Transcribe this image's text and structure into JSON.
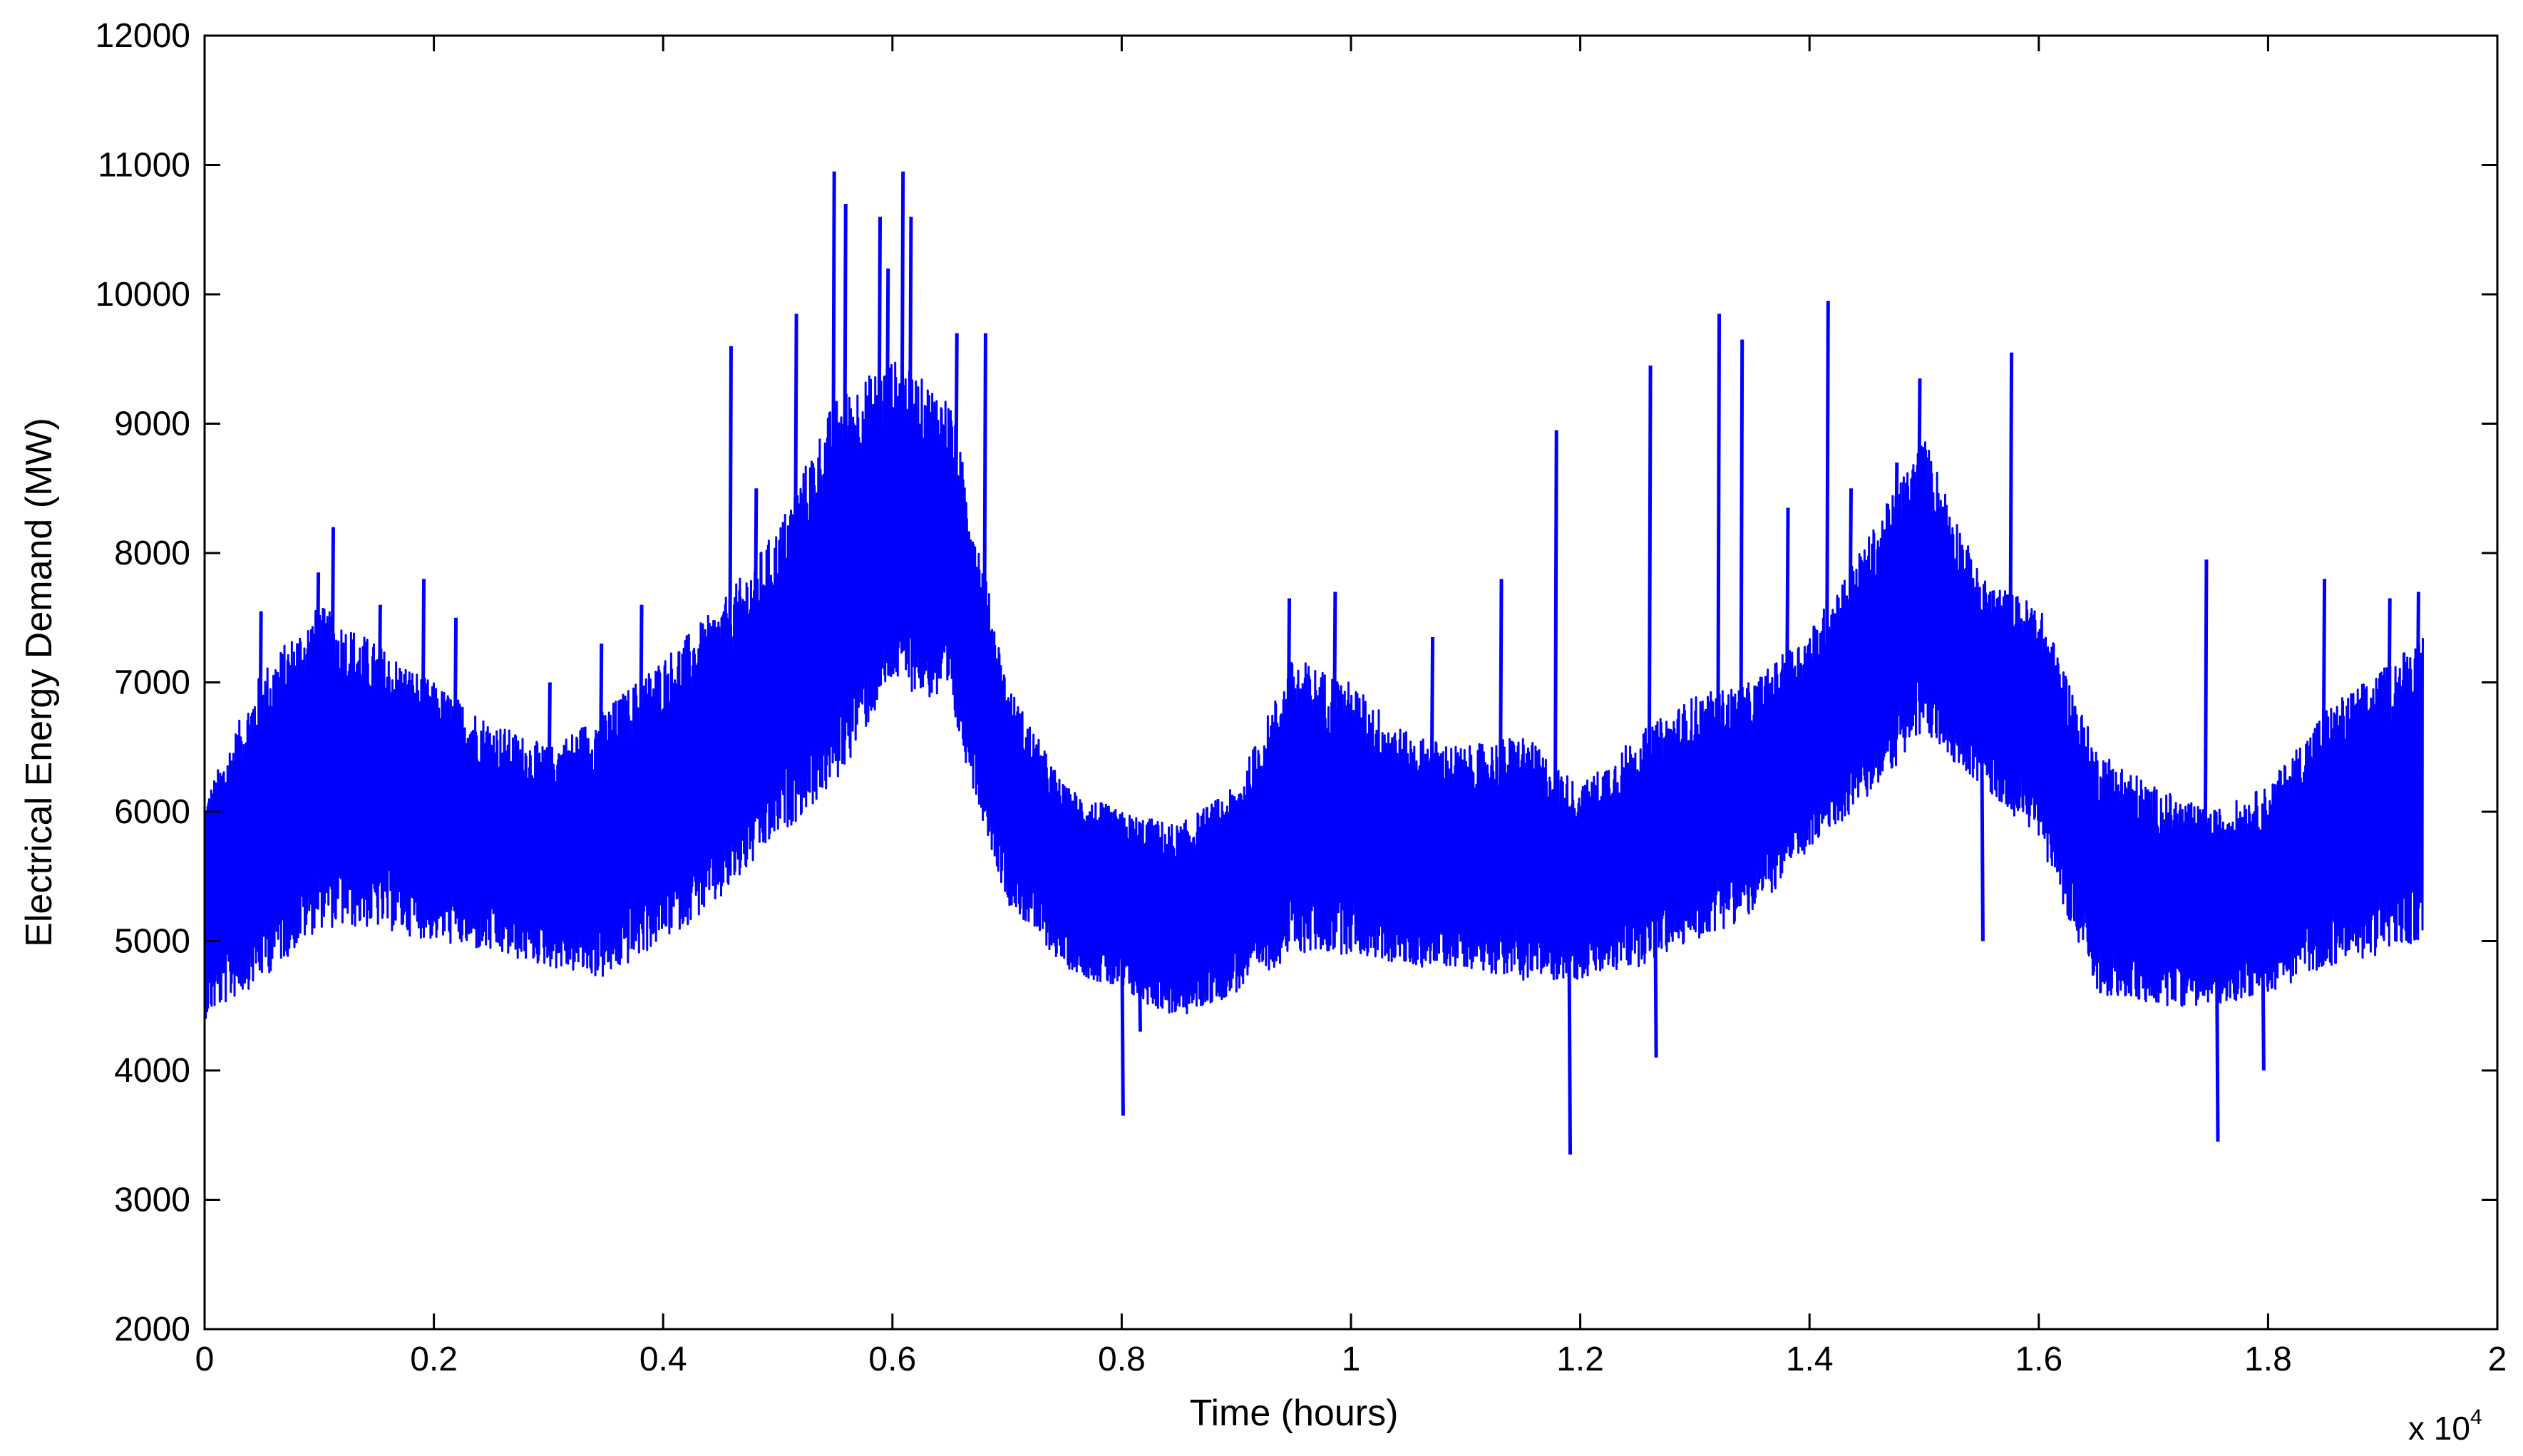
{
  "chart_data": {
    "type": "line",
    "xlabel": "Time (hours)",
    "ylabel": "Electrical Energy Demand (MW)",
    "x_multiplier_label": "x 10",
    "x_multiplier_exponent": "4",
    "xlim": [
      0,
      2
    ],
    "ylim": [
      2000,
      12000
    ],
    "x_unit_multiplier": 10000,
    "x_ticks": [
      "0",
      "0.2",
      "0.4",
      "0.6",
      "0.8",
      "1",
      "1.2",
      "1.4",
      "1.6",
      "1.8",
      "2"
    ],
    "y_ticks": [
      "2000",
      "3000",
      "4000",
      "5000",
      "6000",
      "7000",
      "8000",
      "9000",
      "10000",
      "11000",
      "12000"
    ],
    "grid": false,
    "line_color": "#0000ff",
    "series": [
      {
        "x_start": 0,
        "x_end": 1.935,
        "envelope": {
          "x": [
            0,
            0.05,
            0.1,
            0.15,
            0.2,
            0.25,
            0.3,
            0.35,
            0.4,
            0.45,
            0.5,
            0.55,
            0.6,
            0.65,
            0.7,
            0.75,
            0.8,
            0.85,
            0.9,
            0.95,
            1.0,
            1.05,
            1.1,
            1.15,
            1.2,
            1.25,
            1.3,
            1.35,
            1.4,
            1.45,
            1.5,
            1.55,
            1.6,
            1.65,
            1.7,
            1.75,
            1.8,
            1.85,
            1.9,
            1.935
          ],
          "upper": [
            6100,
            7100,
            7600,
            7300,
            7000,
            6700,
            6500,
            6800,
            7200,
            7600,
            8200,
            9200,
            9500,
            9200,
            7000,
            6200,
            6000,
            5900,
            6200,
            7200,
            7000,
            6600,
            6500,
            6600,
            6200,
            6600,
            6900,
            7000,
            7400,
            8100,
            8900,
            7800,
            7600,
            6500,
            6200,
            6000,
            6200,
            6800,
            7100,
            7400
          ],
          "lower": [
            4400,
            4700,
            5100,
            5100,
            5000,
            4900,
            4800,
            4700,
            5000,
            5300,
            5800,
            6200,
            7000,
            6800,
            5300,
            4800,
            4600,
            4400,
            4600,
            4900,
            4900,
            4800,
            4800,
            4700,
            4700,
            4800,
            5000,
            5200,
            5700,
            6100,
            6600,
            6200,
            5800,
            4600,
            4500,
            4500,
            4600,
            4800,
            4900,
            5000
          ]
        },
        "spikes": [
          {
            "x": 0.048,
            "y": 7550
          },
          {
            "x": 0.098,
            "y": 7850
          },
          {
            "x": 0.111,
            "y": 8200
          },
          {
            "x": 0.152,
            "y": 7600
          },
          {
            "x": 0.19,
            "y": 7800
          },
          {
            "x": 0.218,
            "y": 7500
          },
          {
            "x": 0.3,
            "y": 7000
          },
          {
            "x": 0.345,
            "y": 7300
          },
          {
            "x": 0.38,
            "y": 7600
          },
          {
            "x": 0.458,
            "y": 9600
          },
          {
            "x": 0.48,
            "y": 8500
          },
          {
            "x": 0.515,
            "y": 9850
          },
          {
            "x": 0.548,
            "y": 10950
          },
          {
            "x": 0.558,
            "y": 10700
          },
          {
            "x": 0.588,
            "y": 10600
          },
          {
            "x": 0.595,
            "y": 10200
          },
          {
            "x": 0.608,
            "y": 10950
          },
          {
            "x": 0.615,
            "y": 10600
          },
          {
            "x": 0.655,
            "y": 9700
          },
          {
            "x": 0.68,
            "y": 9700
          },
          {
            "x": 0.8,
            "y": 3650
          },
          {
            "x": 0.815,
            "y": 4300
          },
          {
            "x": 0.945,
            "y": 7650
          },
          {
            "x": 0.985,
            "y": 7700
          },
          {
            "x": 1.07,
            "y": 7350
          },
          {
            "x": 1.13,
            "y": 7800
          },
          {
            "x": 1.178,
            "y": 8950
          },
          {
            "x": 1.19,
            "y": 3350
          },
          {
            "x": 1.26,
            "y": 9450
          },
          {
            "x": 1.265,
            "y": 4100
          },
          {
            "x": 1.32,
            "y": 9850
          },
          {
            "x": 1.34,
            "y": 9650
          },
          {
            "x": 1.38,
            "y": 8350
          },
          {
            "x": 1.415,
            "y": 9950
          },
          {
            "x": 1.435,
            "y": 8500
          },
          {
            "x": 1.475,
            "y": 8700
          },
          {
            "x": 1.495,
            "y": 9350
          },
          {
            "x": 1.575,
            "y": 9550
          },
          {
            "x": 1.55,
            "y": 5000
          },
          {
            "x": 1.755,
            "y": 3450
          },
          {
            "x": 1.745,
            "y": 7950
          },
          {
            "x": 1.795,
            "y": 4000
          },
          {
            "x": 1.848,
            "y": 7800
          },
          {
            "x": 1.905,
            "y": 7650
          },
          {
            "x": 1.93,
            "y": 7700
          }
        ]
      }
    ]
  }
}
